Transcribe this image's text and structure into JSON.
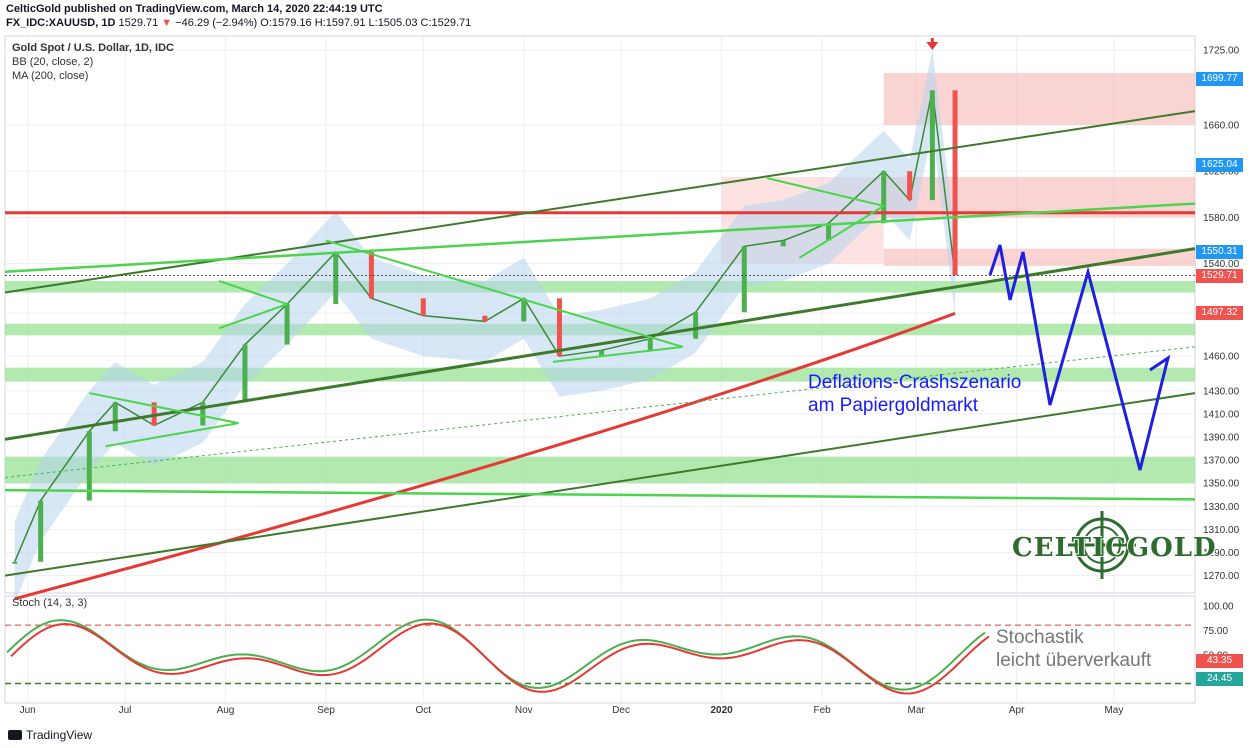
{
  "header": {
    "publisher_line": "CelticGold published on TradingView.com, March 14, 2020 22:44:19 UTC",
    "symbol": "FX_IDC:XAUUSD, 1D",
    "price": "1529.71",
    "change": "−46.29 (−2.94%)",
    "ohlc": "O:1579.16 H:1597.91 L:1505.03 C:1529.71"
  },
  "chart_title": "Gold Spot / U.S. Dollar, 1D, IDC",
  "indicators": [
    "BB (20, close, 2)",
    "MA (200, close)"
  ],
  "price_tags": [
    {
      "label": "1699.77",
      "value": 1699.77,
      "color": "#2196f3"
    },
    {
      "label": "1625.04",
      "value": 1625.04,
      "color": "#2196f3"
    },
    {
      "label": "1550.31",
      "value": 1550.31,
      "color": "#2196f3"
    },
    {
      "label": "1529.71",
      "value": 1529.71,
      "color": "#ef5350"
    },
    {
      "label": "1497.32",
      "value": 1497.32,
      "color": "#ef5350"
    }
  ],
  "stoch": {
    "label": "Stoch (14, 3, 3)",
    "ticks": [
      "100.00",
      "75.00",
      "50.00"
    ],
    "tags": [
      {
        "label": "43.35",
        "value": 43.35,
        "color": "#ef5350"
      },
      {
        "label": "24.45",
        "value": 24.45,
        "color": "#26a69a"
      }
    ]
  },
  "annotation": {
    "line1": "Deflations-Crashszenario",
    "line2": "am Papiergoldmarkt"
  },
  "stoch_annotation": {
    "line1": "Stochastik",
    "line2": "leicht überverkauft"
  },
  "logo_text": "CELTICGOLD",
  "footer": "TradingView",
  "chart_data": {
    "type": "line",
    "title": "Gold Spot / U.S. Dollar, 1D, IDC",
    "x_ticks": [
      "Jun",
      "Jul",
      "Aug",
      "Sep",
      "Oct",
      "Nov",
      "Dec",
      "2020",
      "Feb",
      "Mar",
      "Apr",
      "May"
    ],
    "y_ticks": [
      1270,
      1290,
      1310,
      1330,
      1350,
      1370,
      1390,
      1410,
      1430,
      1460,
      1497.32,
      1540,
      1580,
      1620,
      1660,
      1725
    ],
    "ylim": [
      1255,
      1737
    ],
    "series": [
      {
        "name": "",
        "x": [
          "2019-05-28",
          "2019-06-05",
          "2019-06-20",
          "2019-06-28",
          "2019-07-10",
          "2019-07-25",
          "2019-08-07",
          "2019-08-20",
          "2019-09-04",
          "2019-09-15",
          "2019-10-01",
          "2019-10-20",
          "2019-11-01",
          "2019-11-12",
          "2019-11-25",
          "2019-12-10",
          "2019-12-24",
          "2020-01-08",
          "2020-01-20",
          "2020-02-03",
          "2020-02-20",
          "2020-02-28",
          "2020-03-06",
          "2020-03-13"
        ],
        "values": [
          1282,
          1335,
          1395,
          1420,
          1400,
          1420,
          1470,
          1505,
          1550,
          1510,
          1495,
          1490,
          1510,
          1460,
          1465,
          1475,
          1498,
          1555,
          1560,
          1575,
          1620,
          1595,
          1690,
          1530
        ]
      },
      {
        "name": "",
        "x": [
          "2019-05-28",
          "2020-03-13"
        ],
        "values": [
          1250,
          1497
        ]
      }
    ],
    "stochastic": {
      "k_last": 24.45,
      "d_last": 43.35,
      "levels": [
        80,
        20
      ]
    }
  }
}
